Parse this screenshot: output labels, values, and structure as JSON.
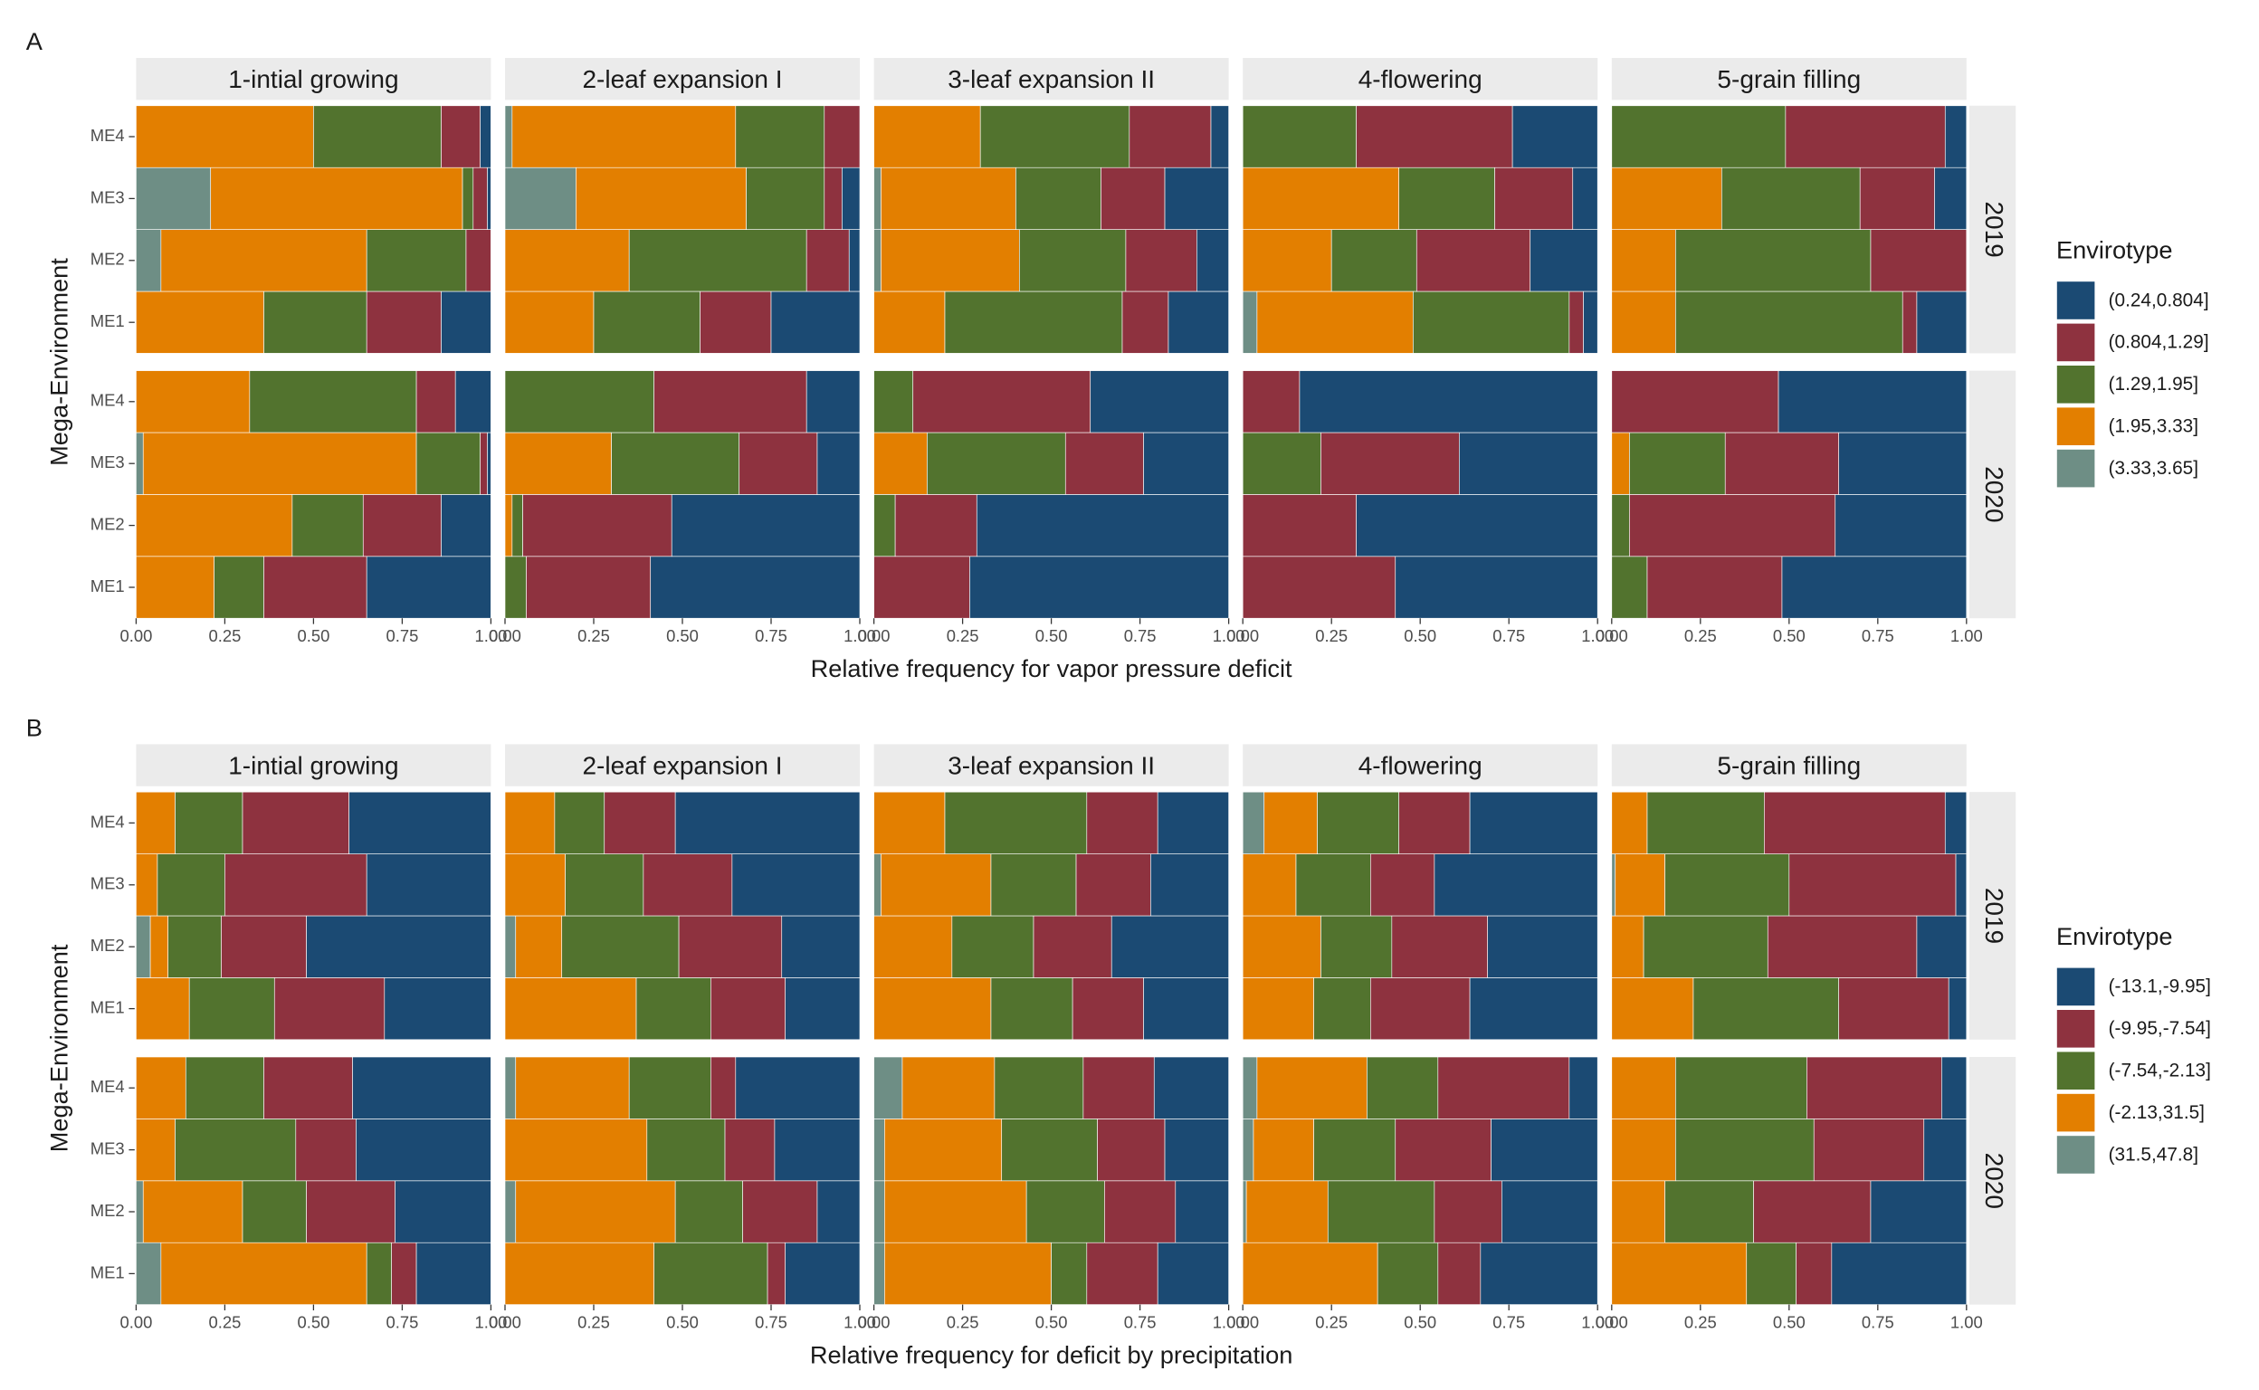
{
  "chart_data": [
    {
      "type": "stacked-bar-facets",
      "panel_label": "A",
      "y_label": "Mega-Environment",
      "x_label": "Relative frequency for vapor pressure deficit",
      "facets": [
        "1-intial growing",
        "2-leaf expansion I",
        "3-leaf expansion II",
        "4-flowering",
        "5-grain filling"
      ],
      "facet_rows": [
        "2019",
        "2020"
      ],
      "categories": [
        "ME1",
        "ME2",
        "ME3",
        "ME4"
      ],
      "legend_title": "Envirotype",
      "xlim": [
        0,
        1
      ],
      "xticks": [
        {
          "value": 0,
          "label": "0.00"
        },
        {
          "value": 0.25,
          "label": "0.25"
        },
        {
          "value": 0.5,
          "label": "0.50"
        },
        {
          "value": 0.75,
          "label": "0.75"
        },
        {
          "value": 1,
          "label": "1.00"
        }
      ],
      "series": [
        {
          "name": "(0.24,0.804]",
          "color": "#1b4a73",
          "values": [
            [
              [
                0.14,
                0,
                0.01,
                0.03
              ],
              [
                0.35,
                0.14,
                0.01,
                0.1
              ]
            ],
            [
              [
                0.25,
                0.03,
                0.05,
                0
              ],
              [
                0.59,
                0.53,
                0.12,
                0.15
              ]
            ],
            [
              [
                0.17,
                0.09,
                0.18,
                0.05
              ],
              [
                0.73,
                0.71,
                0.24,
                0.39
              ]
            ],
            [
              [
                0.04,
                0.19,
                0.07,
                0.24
              ],
              [
                0.57,
                0.68,
                0.39,
                0.84
              ]
            ],
            [
              [
                0.14,
                0,
                0.09,
                0.06
              ],
              [
                0.52,
                0.37,
                0.36,
                0.53
              ]
            ]
          ]
        },
        {
          "name": "(0.804,1.29]",
          "color": "#8e323f",
          "values": [
            [
              [
                0.21,
                0.07,
                0.04,
                0.11
              ],
              [
                0.29,
                0.22,
                0.02,
                0.11
              ]
            ],
            [
              [
                0.2,
                0.12,
                0.05,
                0.1
              ],
              [
                0.35,
                0.42,
                0.22,
                0.43
              ]
            ],
            [
              [
                0.13,
                0.2,
                0.18,
                0.23
              ],
              [
                0.27,
                0.23,
                0.22,
                0.5
              ]
            ],
            [
              [
                0.04,
                0.32,
                0.22,
                0.44
              ],
              [
                0.43,
                0.32,
                0.39,
                0.16
              ]
            ],
            [
              [
                0.04,
                0.27,
                0.21,
                0.45
              ],
              [
                0.38,
                0.58,
                0.32,
                0.47
              ]
            ]
          ]
        },
        {
          "name": "(1.29,1.95]",
          "color": "#52732e",
          "values": [
            [
              [
                0.29,
                0.28,
                0.03,
                0.36
              ],
              [
                0.14,
                0.2,
                0.18,
                0.47
              ]
            ],
            [
              [
                0.3,
                0.5,
                0.22,
                0.25
              ],
              [
                0.06,
                0.03,
                0.36,
                0.42
              ]
            ],
            [
              [
                0.5,
                0.3,
                0.24,
                0.42
              ],
              [
                0,
                0.06,
                0.39,
                0.11
              ]
            ],
            [
              [
                0.44,
                0.24,
                0.27,
                0.32
              ],
              [
                0,
                0,
                0.22,
                0
              ]
            ],
            [
              [
                0.64,
                0.55,
                0.39,
                0.49
              ],
              [
                0.1,
                0.05,
                0.27,
                0
              ]
            ]
          ]
        },
        {
          "name": "(1.95,3.33]",
          "color": "#e37f00",
          "values": [
            [
              [
                0.36,
                0.58,
                0.71,
                0.5
              ],
              [
                0.22,
                0.44,
                0.77,
                0.32
              ]
            ],
            [
              [
                0.25,
                0.35,
                0.48,
                0.63
              ],
              [
                0,
                0.02,
                0.3,
                0
              ]
            ],
            [
              [
                0.2,
                0.39,
                0.38,
                0.3
              ],
              [
                0,
                0,
                0.15,
                0
              ]
            ],
            [
              [
                0.44,
                0.25,
                0.44,
                0
              ],
              [
                0,
                0,
                0,
                0
              ]
            ],
            [
              [
                0.18,
                0.18,
                0.31,
                0
              ],
              [
                0,
                0,
                0.05,
                0
              ]
            ]
          ]
        },
        {
          "name": "(3.33,3.65]",
          "color": "#6e8e85",
          "values": [
            [
              [
                0,
                0.07,
                0.21,
                0
              ],
              [
                0,
                0,
                0.02,
                0
              ]
            ],
            [
              [
                0,
                0,
                0.2,
                0.02
              ],
              [
                0,
                0,
                0,
                0
              ]
            ],
            [
              [
                0,
                0.02,
                0.02,
                0
              ],
              [
                0,
                0,
                0,
                0
              ]
            ],
            [
              [
                0.04,
                0,
                0,
                0
              ],
              [
                0,
                0,
                0,
                0
              ]
            ],
            [
              [
                0,
                0,
                0,
                0
              ],
              [
                0,
                0,
                0,
                0
              ]
            ]
          ]
        }
      ]
    },
    {
      "type": "stacked-bar-facets",
      "panel_label": "B",
      "y_label": "Mega-Environment",
      "x_label": "Relative frequency for deficit by precipitation",
      "facets": [
        "1-intial growing",
        "2-leaf expansion I",
        "3-leaf expansion II",
        "4-flowering",
        "5-grain filling"
      ],
      "facet_rows": [
        "2019",
        "2020"
      ],
      "categories": [
        "ME1",
        "ME2",
        "ME3",
        "ME4"
      ],
      "legend_title": "Envirotype",
      "xlim": [
        0,
        1
      ],
      "xticks": [
        {
          "value": 0,
          "label": "0.00"
        },
        {
          "value": 0.25,
          "label": "0.25"
        },
        {
          "value": 0.5,
          "label": "0.50"
        },
        {
          "value": 0.75,
          "label": "0.75"
        },
        {
          "value": 1,
          "label": "1.00"
        }
      ],
      "series": [
        {
          "name": "(-13.1,-9.95]",
          "color": "#1b4a73",
          "values": [
            [
              [
                0.3,
                0.52,
                0.35,
                0.4
              ],
              [
                0.21,
                0.27,
                0.38,
                0.39
              ]
            ],
            [
              [
                0.21,
                0.22,
                0.36,
                0.52
              ],
              [
                0.21,
                0.12,
                0.24,
                0.35
              ]
            ],
            [
              [
                0.24,
                0.33,
                0.22,
                0.2
              ],
              [
                0.2,
                0.15,
                0.18,
                0.21
              ]
            ],
            [
              [
                0.36,
                0.31,
                0.46,
                0.36
              ],
              [
                0.33,
                0.27,
                0.3,
                0.08
              ]
            ],
            [
              [
                0.05,
                0.14,
                0.03,
                0.06
              ],
              [
                0.38,
                0.27,
                0.12,
                0.07
              ]
            ]
          ]
        },
        {
          "name": "(-9.95,-7.54]",
          "color": "#8e323f",
          "values": [
            [
              [
                0.31,
                0.24,
                0.4,
                0.3
              ],
              [
                0.07,
                0.25,
                0.17,
                0.25
              ]
            ],
            [
              [
                0.21,
                0.29,
                0.25,
                0.2
              ],
              [
                0.05,
                0.21,
                0.14,
                0.07
              ]
            ],
            [
              [
                0.2,
                0.22,
                0.21,
                0.2
              ],
              [
                0.2,
                0.2,
                0.19,
                0.2
              ]
            ],
            [
              [
                0.28,
                0.27,
                0.18,
                0.2
              ],
              [
                0.12,
                0.19,
                0.27,
                0.37
              ]
            ],
            [
              [
                0.31,
                0.42,
                0.47,
                0.51
              ],
              [
                0.1,
                0.33,
                0.31,
                0.38
              ]
            ]
          ]
        },
        {
          "name": "(-7.54,-2.13]",
          "color": "#52732e",
          "values": [
            [
              [
                0.24,
                0.15,
                0.19,
                0.19
              ],
              [
                0.07,
                0.18,
                0.34,
                0.22
              ]
            ],
            [
              [
                0.21,
                0.33,
                0.22,
                0.14
              ],
              [
                0.32,
                0.19,
                0.22,
                0.23
              ]
            ],
            [
              [
                0.23,
                0.23,
                0.24,
                0.4
              ],
              [
                0.1,
                0.22,
                0.27,
                0.25
              ]
            ],
            [
              [
                0.16,
                0.2,
                0.21,
                0.23
              ],
              [
                0.17,
                0.3,
                0.23,
                0.2
              ]
            ],
            [
              [
                0.41,
                0.35,
                0.35,
                0.33
              ],
              [
                0.14,
                0.25,
                0.39,
                0.37
              ]
            ]
          ]
        },
        {
          "name": "(-2.13,31.5]",
          "color": "#e37f00",
          "values": [
            [
              [
                0.15,
                0.05,
                0.06,
                0.11
              ],
              [
                0.58,
                0.28,
                0.11,
                0.14
              ]
            ],
            [
              [
                0.37,
                0.13,
                0.17,
                0.14
              ],
              [
                0.42,
                0.45,
                0.4,
                0.32
              ]
            ],
            [
              [
                0.33,
                0.22,
                0.31,
                0.2
              ],
              [
                0.47,
                0.4,
                0.33,
                0.26
              ]
            ],
            [
              [
                0.2,
                0.22,
                0.15,
                0.15
              ],
              [
                0.38,
                0.23,
                0.17,
                0.31
              ]
            ],
            [
              [
                0.23,
                0.09,
                0.14,
                0.1
              ],
              [
                0.38,
                0.15,
                0.18,
                0.18
              ]
            ]
          ]
        },
        {
          "name": "(31.5,47.8]",
          "color": "#6e8e85",
          "values": [
            [
              [
                0,
                0.04,
                0,
                0
              ],
              [
                0.07,
                0.02,
                0,
                0
              ]
            ],
            [
              [
                0,
                0.03,
                0,
                0
              ],
              [
                0,
                0.03,
                0,
                0.03
              ]
            ],
            [
              [
                0,
                0,
                0.02,
                0
              ],
              [
                0.03,
                0.03,
                0.03,
                0.08
              ]
            ],
            [
              [
                0,
                0,
                0,
                0.06
              ],
              [
                0,
                0.01,
                0.03,
                0.04
              ]
            ],
            [
              [
                0,
                0,
                0.01,
                0
              ],
              [
                0,
                0,
                0,
                0
              ]
            ]
          ]
        }
      ]
    }
  ]
}
